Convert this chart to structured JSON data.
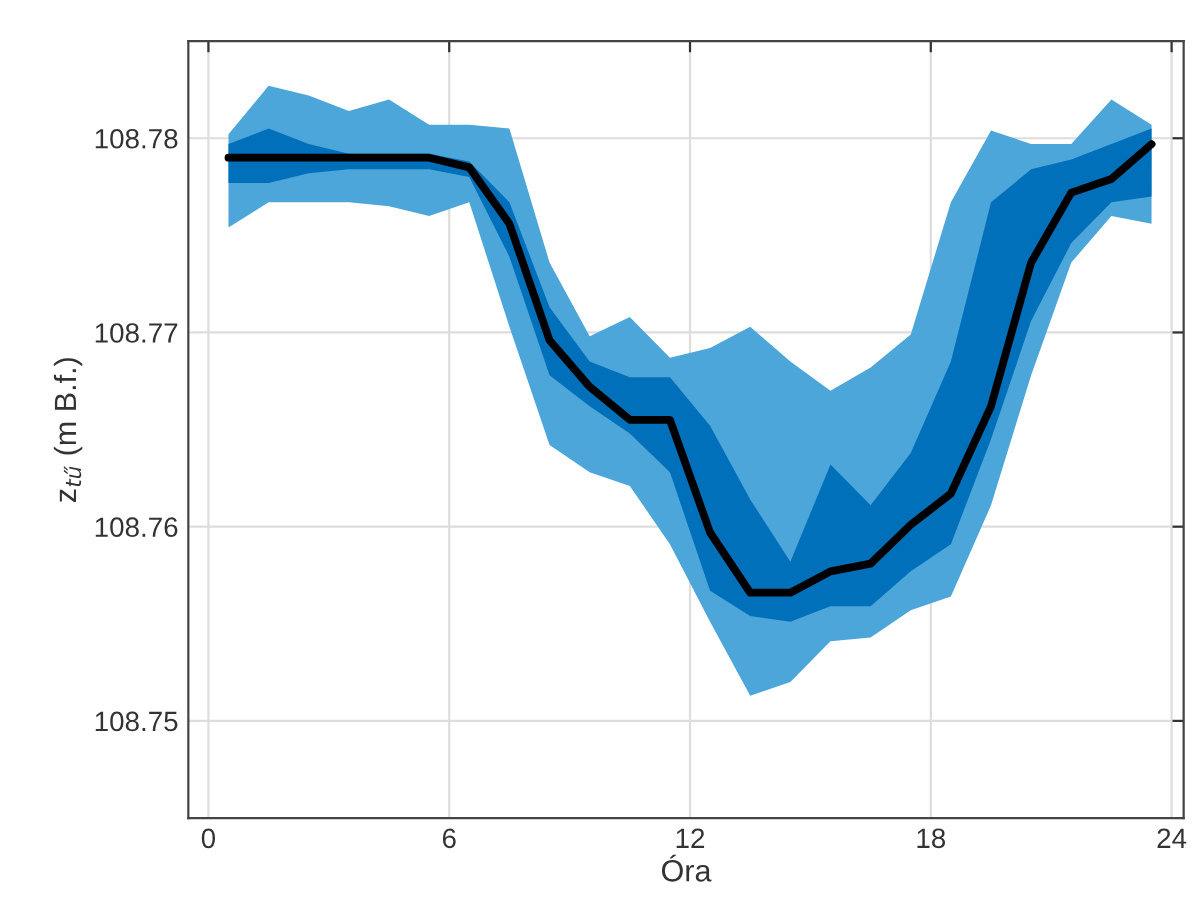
{
  "chart_data": {
    "type": "line",
    "xlabel": "Óra",
    "ylabel": "z$_{tű}$ (m B.f.)",
    "x": [
      0.5,
      1.5,
      2.5,
      3.5,
      4.5,
      5.5,
      6.5,
      7.5,
      8.5,
      9.5,
      10.5,
      11.5,
      12.5,
      13.5,
      14.5,
      15.5,
      16.5,
      17.5,
      18.5,
      19.5,
      20.5,
      21.5,
      22.5,
      23.5
    ],
    "series": [
      {
        "color": "#4da6d9",
        "values": [
          null,
          null,
          null,
          null,
          null,
          null,
          null,
          null,
          null,
          null,
          null,
          null,
          null,
          null,
          null,
          null,
          null,
          null,
          null,
          null,
          null,
          null,
          null,
          null
        ],
        "lower": [
          108.7754,
          108.7767,
          108.7767,
          108.7767,
          108.7765,
          108.776,
          108.7767,
          108.7703,
          108.7642,
          108.7628,
          108.7621,
          108.7591,
          108.7551,
          108.7513,
          108.752,
          108.7541,
          108.7543,
          108.7557,
          108.7564,
          108.7611,
          108.7678,
          108.7736,
          108.776,
          108.7756
        ],
        "upper": [
          108.7802,
          108.7827,
          108.7822,
          108.7814,
          108.782,
          108.7807,
          108.7807,
          108.7805,
          108.7736,
          108.7698,
          108.7708,
          108.7687,
          108.7692,
          108.7703,
          108.7685,
          108.767,
          108.7682,
          108.7699,
          108.7767,
          108.7804,
          108.7797,
          108.7797,
          108.782,
          108.7807
        ]
      },
      {
        "color": "#0070bb",
        "values": [
          null,
          null,
          null,
          null,
          null,
          null,
          null,
          null,
          null,
          null,
          null,
          null,
          null,
          null,
          null,
          null,
          null,
          null,
          null,
          null,
          null,
          null,
          null,
          null
        ],
        "lower": [
          108.7777,
          108.7777,
          108.7782,
          108.7784,
          108.7784,
          108.7784,
          108.778,
          108.7739,
          108.7678,
          108.7662,
          108.7648,
          108.7628,
          108.7567,
          108.7554,
          108.7551,
          108.7559,
          108.7559,
          108.7577,
          108.7591,
          108.7645,
          108.7706,
          108.7746,
          108.7767,
          108.777
        ],
        "upper": [
          108.7797,
          108.7805,
          108.7797,
          108.7792,
          108.7792,
          108.7792,
          108.7788,
          108.7767,
          108.7713,
          108.7685,
          108.7677,
          108.7677,
          108.7652,
          108.7614,
          108.7582,
          108.7632,
          108.7611,
          108.7638,
          108.7685,
          108.7767,
          108.7784,
          108.7789,
          108.7797,
          108.7805
        ]
      },
      {
        "type": "line",
        "color": "#000000",
        "values": [
          108.779,
          108.779,
          108.779,
          108.779,
          108.779,
          108.779,
          108.7785,
          108.7756,
          108.7696,
          108.7672,
          108.7655,
          108.7655,
          108.7597,
          108.7566,
          108.7566,
          108.7577,
          108.7581,
          108.7601,
          108.7617,
          108.7662,
          108.7736,
          108.7772,
          108.7779,
          108.7797
        ]
      }
    ],
    "xlim": [
      -0.5,
      24.3
    ],
    "xticks": [
      0,
      6,
      12,
      18,
      24
    ],
    "ylim": [
      108.745,
      108.785
    ],
    "yticks": [
      108.75,
      108.76,
      108.77,
      108.78
    ],
    "grid": true,
    "line_style": "solid",
    "marker": "none"
  }
}
